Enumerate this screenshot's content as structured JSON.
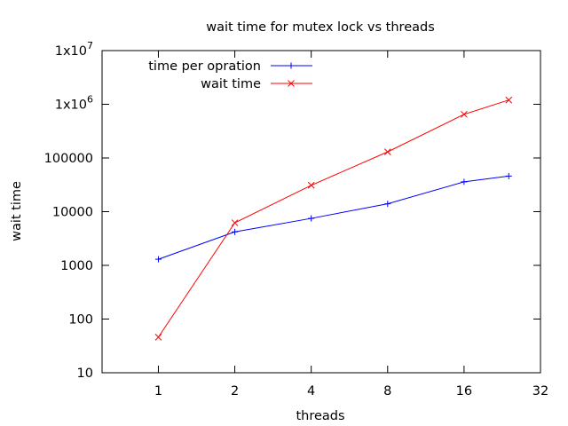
{
  "chart_data": {
    "type": "line",
    "title": "wait time for mutex lock vs threads",
    "xlabel": "threads",
    "ylabel": "wait time",
    "x_scale": "log2",
    "y_scale": "log10",
    "xlim": [
      0.6,
      32
    ],
    "ylim": [
      10,
      10000000
    ],
    "x_ticks": [
      1,
      2,
      4,
      8,
      16,
      32
    ],
    "x_tick_labels": [
      "1",
      "2",
      "4",
      "8",
      "16",
      "32"
    ],
    "y_ticks": [
      10,
      100,
      1000,
      10000,
      100000,
      1000000,
      10000000
    ],
    "y_tick_labels": [
      {
        "base": "10",
        "exp": ""
      },
      {
        "base": "100",
        "exp": ""
      },
      {
        "base": "1000",
        "exp": ""
      },
      {
        "base": "10000",
        "exp": ""
      },
      {
        "base": "100000",
        "exp": ""
      },
      {
        "base": "1x10",
        "exp": "6"
      },
      {
        "base": "1x10",
        "exp": "7"
      }
    ],
    "legend_position": "top-left",
    "grid": false,
    "series": [
      {
        "name": "time per opration",
        "color": "#0000ff",
        "marker": "plus",
        "x": [
          1,
          2,
          4,
          8,
          16,
          24
        ],
        "y": [
          1300,
          4200,
          7500,
          14000,
          36000,
          46000
        ]
      },
      {
        "name": "wait time",
        "color": "#ff0000",
        "marker": "cross",
        "x": [
          1,
          2,
          4,
          8,
          16,
          24
        ],
        "y": [
          46,
          6200,
          31000,
          130000,
          650000,
          1200000
        ]
      }
    ]
  }
}
